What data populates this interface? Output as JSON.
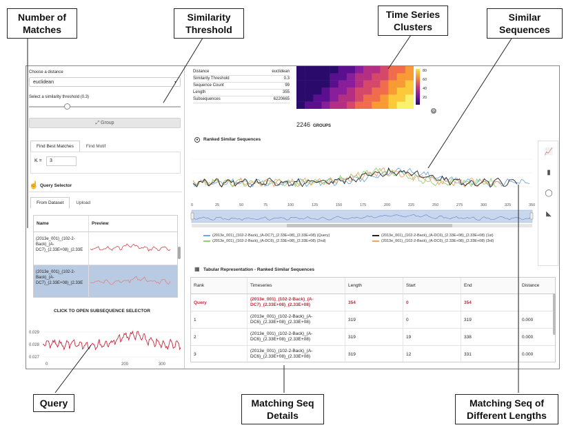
{
  "callouts": {
    "number_of_matches": [
      "Number of",
      "Matches"
    ],
    "similarity_threshold": [
      "Similarity",
      "Threshold"
    ],
    "time_series_clusters": [
      "Time Series",
      "Clusters"
    ],
    "similar_sequences": [
      "Similar",
      "Sequences"
    ],
    "query": [
      "Query"
    ],
    "matching_seq_details": [
      "Matching Seq",
      "Details"
    ],
    "matching_seq_lengths": [
      "Matching Seq of",
      "Different Lengths"
    ]
  },
  "sidebar": {
    "distance_label": "Choose a distance",
    "distance_value": "euclidean",
    "threshold_label": "Select a similarity threshold (0.3)",
    "threshold_value": 0.3,
    "group_button": "Group",
    "tabs": [
      "Find Best Matches",
      "Find Motif"
    ],
    "k_label": "K =",
    "k_value": "3",
    "query_selector_title": "Query Selector",
    "source_tabs": [
      "From Dataset",
      "Upload"
    ],
    "dataset_table": {
      "columns": [
        "Name",
        "Preview"
      ],
      "rows": [
        {
          "name": [
            "(2013e_001)_(102-2-",
            "Back)_(A-",
            "DC7)_(2.33E+08)_(2.33E"
          ],
          "selected": false
        },
        {
          "name": [
            "(2013e_001)_(102-2-",
            "Back)_(A-",
            "DC7)_(2.33E+08)_(2.33E"
          ],
          "selected": true
        }
      ]
    },
    "subsequence_title": "CLICK TO OPEN SUBSEQUENCE SELECTOR",
    "query_chart": {
      "y_ticks": [
        "0.029",
        "0.028",
        "0.027"
      ],
      "x_ticks": [
        "0",
        "200",
        "300"
      ]
    }
  },
  "info": {
    "rows": [
      {
        "label": "Distance",
        "value": "euclidean"
      },
      {
        "label": "Similarity Threshold",
        "value": "0.3"
      },
      {
        "label": "Sequence Count",
        "value": "99"
      },
      {
        "label": "Length",
        "value": "355"
      },
      {
        "label": "Subsequences",
        "value": "6220665"
      }
    ]
  },
  "clusters": {
    "colorbar_ticks": [
      "80",
      "60",
      "40",
      "20"
    ],
    "groups_count": "2246",
    "groups_label": "GROUPS"
  },
  "ranked": {
    "title": "Ranked Similar Sequences",
    "x_ticks": [
      "0",
      "25",
      "50",
      "75",
      "100",
      "125",
      "150",
      "175",
      "200",
      "225",
      "250",
      "275",
      "300",
      "325",
      "350"
    ],
    "legend": [
      {
        "label": "(2013e_001)_(102-2-Back)_(A-DC7)_(2.33E+08)_(2.33E+08) (Query)",
        "color": "#6fa8dc"
      },
      {
        "label": "(2013e_001)_(102-2-Back)_(A-DC6)_(2.33E+08)_(2.33E+08) (1st)",
        "color": "#222222"
      },
      {
        "label": "(2013e_001)_(102-2-Back)_(A-DC6)_(2.33E+08)_(2.33E+08) (2nd)",
        "color": "#8fd16b"
      },
      {
        "label": "(2013e_001)_(102-2-Back)_(A-DC6)_(2.33E+08)_(2.33E+08) (3rd)",
        "color": "#f2a36b"
      }
    ]
  },
  "tabular": {
    "title": "Tabular Representation - Ranked Similar Sequences",
    "columns": [
      "Rank",
      "Timeseries",
      "Length",
      "Start",
      "End",
      "Distance"
    ],
    "rows": [
      {
        "rank": "Query",
        "ts": [
          "(2013e_001)_(102-2-Back)_(A-",
          "DC7)_(2.33E+08)_(2.33E+08)"
        ],
        "length": "354",
        "start": "0",
        "end": "354",
        "distance": ""
      },
      {
        "rank": "1",
        "ts": [
          "(2013e_001)_(102-2-Back)_(A-",
          "DC6)_(2.33E+08)_(2.33E+08)"
        ],
        "length": "319",
        "start": "0",
        "end": "319",
        "distance": "0.000"
      },
      {
        "rank": "2",
        "ts": [
          "(2013e_001)_(102-2-Back)_(A-",
          "DC6)_(2.33E+08)_(2.33E+08)"
        ],
        "length": "319",
        "start": "19",
        "end": "338",
        "distance": "0.000"
      },
      {
        "rank": "3",
        "ts": [
          "(2013e_001)_(102-2-Back)_(A-",
          "DC6)_(2.33E+08)_(2.33E+08)"
        ],
        "length": "319",
        "start": "12",
        "end": "331",
        "distance": "0.000"
      }
    ]
  },
  "colors": {
    "query_red": "#c8263b",
    "selection_blue": "#b9cbe2",
    "navigator_blue": "#c9d7ee"
  }
}
